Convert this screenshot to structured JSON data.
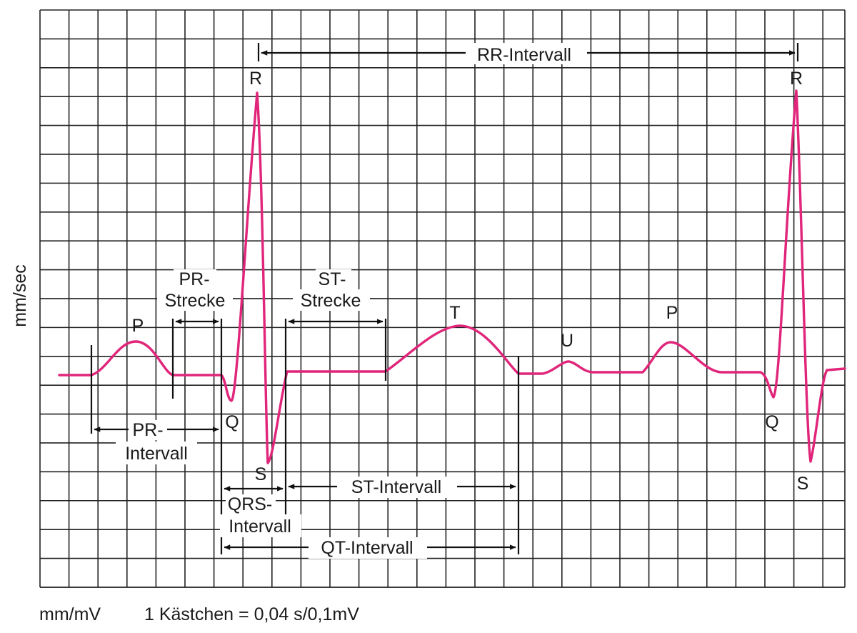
{
  "axis": {
    "y_label": "mm/sec",
    "x_label": "mm/mV",
    "scale_note": "1 Kästchen = 0,04 s/0,1mV"
  },
  "waves": {
    "p1": "P",
    "q1": "Q",
    "r1": "R",
    "s1": "S",
    "t": "T",
    "u": "U",
    "p2": "P",
    "q2": "Q",
    "r2": "R",
    "s2": "S"
  },
  "intervals": {
    "rr": "RR-Intervall",
    "pr_strecke_1": "PR-",
    "pr_strecke_2": "Strecke",
    "st_strecke_1": "ST-",
    "st_strecke_2": "Strecke",
    "pr_intervall_1": "PR-",
    "pr_intervall_2": "Intervall",
    "qrs_intervall_1": "QRS-",
    "qrs_intervall_2": "Intervall",
    "st_intervall": "ST-Intervall",
    "qt_intervall": "QT-Intervall"
  },
  "colors": {
    "trace": "#e0257a",
    "grid": "#222222"
  }
}
